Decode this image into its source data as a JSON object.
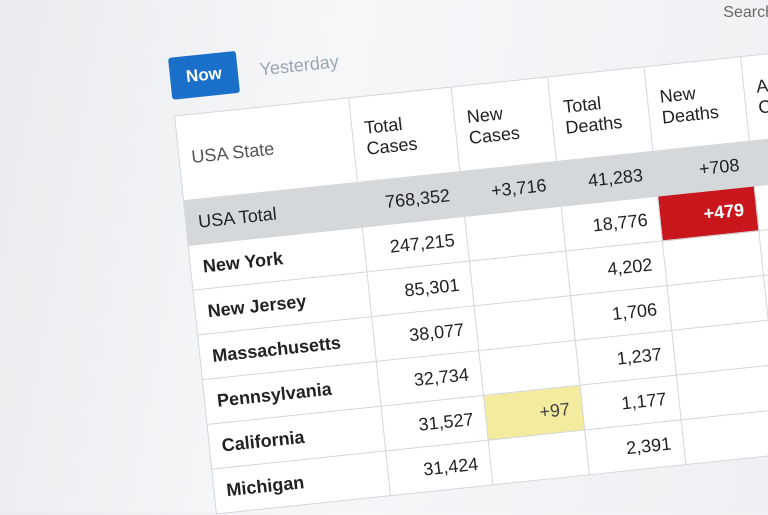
{
  "search": "Search",
  "tabs": [
    "Now",
    "Yesterday"
  ],
  "table": {
    "header": [
      "USA State",
      "Total Cases",
      "New Cases",
      "Total Deaths",
      "New Deaths",
      "Active Cases"
    ],
    "rows": [
      [
        "USA Total",
        "768,352",
        "+3,716",
        "41,283",
        "+708",
        null
      ],
      [
        "New York",
        "247,215",
        null,
        "18,776",
        "+479",
        null
      ],
      [
        "New Jersey",
        "85,301",
        null,
        "4,202",
        null,
        null
      ],
      [
        "Massachusetts",
        "38,077",
        null,
        "1,706",
        null,
        null
      ],
      [
        "Pennsylvania",
        "32,734",
        null,
        "1,237",
        null,
        null
      ],
      [
        "California",
        "31,527",
        "+97",
        "1,177",
        null,
        null
      ],
      [
        "Michigan",
        "31,424",
        null,
        "2,391",
        null,
        null
      ]
    ]
  }
}
